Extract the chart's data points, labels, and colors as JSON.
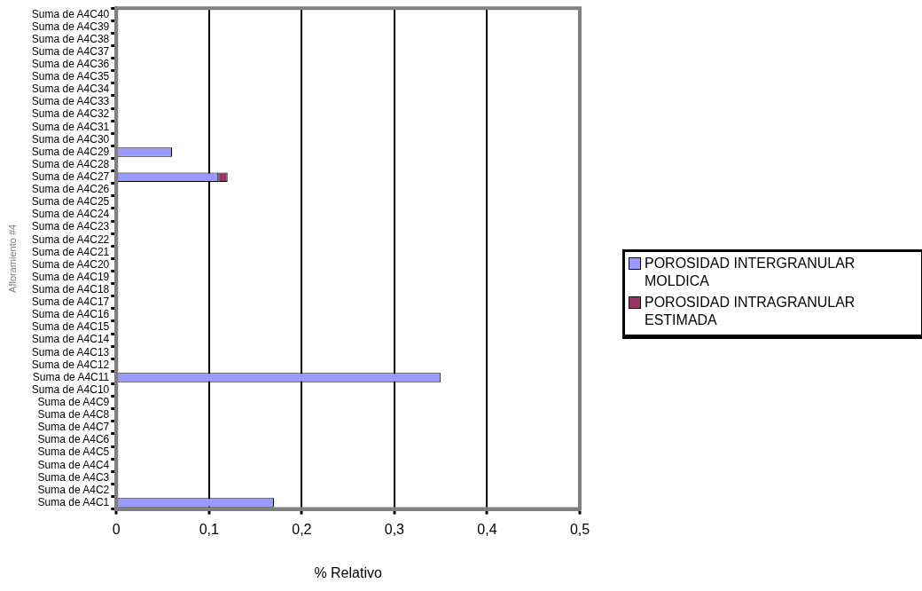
{
  "chart_data": {
    "type": "bar",
    "orientation": "horizontal",
    "stacked": true,
    "xlabel": "% Relativo",
    "ylabel": "Afloramiento #4",
    "categories": [
      "Suma de A4C40",
      "Suma de A4C39",
      "Suma de A4C38",
      "Suma de A4C37",
      "Suma de A4C36",
      "Suma de A4C35",
      "Suma de A4C34",
      "Suma de A4C33",
      "Suma de A4C32",
      "Suma de A4C31",
      "Suma de A4C30",
      "Suma de A4C29",
      "Suma de A4C28",
      "Suma de A4C27",
      "Suma de A4C26",
      "Suma de A4C25",
      "Suma de A4C24",
      "Suma de A4C23",
      "Suma de A4C22",
      "Suma de A4C21",
      "Suma de A4C20",
      "Suma de A4C19",
      "Suma de A4C18",
      "Suma de A4C17",
      "Suma de A4C16",
      "Suma de A4C15",
      "Suma de A4C14",
      "Suma de A4C13",
      "Suma de A4C12",
      "Suma de A4C11",
      "Suma de A4C10",
      "Suma de A4C9",
      "Suma de A4C8",
      "Suma de A4C7",
      "Suma de A4C6",
      "Suma de A4C5",
      "Suma de A4C4",
      "Suma de A4C3",
      "Suma de A4C2",
      "Suma de A4C1"
    ],
    "series": [
      {
        "name": "POROSIDAD INTERGRANULAR MOLDICA",
        "color": "#9999ff",
        "values": [
          0,
          0,
          0,
          0,
          0,
          0,
          0,
          0,
          0,
          0,
          0,
          0.06,
          0,
          0.11,
          0,
          0,
          0,
          0,
          0,
          0,
          0,
          0,
          0,
          0,
          0,
          0,
          0,
          0,
          0,
          0.35,
          0,
          0,
          0,
          0,
          0,
          0,
          0,
          0,
          0,
          0.17
        ]
      },
      {
        "name": "POROSIDAD INTRAGRANULAR ESTIMADA",
        "color": "#993366",
        "values": [
          0,
          0,
          0,
          0,
          0,
          0,
          0,
          0,
          0,
          0,
          0,
          0,
          0,
          0.01,
          0,
          0,
          0,
          0,
          0,
          0,
          0,
          0,
          0,
          0,
          0,
          0,
          0,
          0,
          0,
          0,
          0,
          0,
          0,
          0,
          0,
          0,
          0,
          0,
          0,
          0
        ]
      }
    ],
    "xlim": [
      0,
      0.5
    ],
    "xticks": [
      {
        "value": 0,
        "label": "0"
      },
      {
        "value": 0.1,
        "label": "0,1"
      },
      {
        "value": 0.2,
        "label": "0,2"
      },
      {
        "value": 0.3,
        "label": "0,3"
      },
      {
        "value": 0.4,
        "label": "0,4"
      },
      {
        "value": 0.5,
        "label": "0,5"
      }
    ],
    "grid": "x",
    "legend": "right"
  }
}
